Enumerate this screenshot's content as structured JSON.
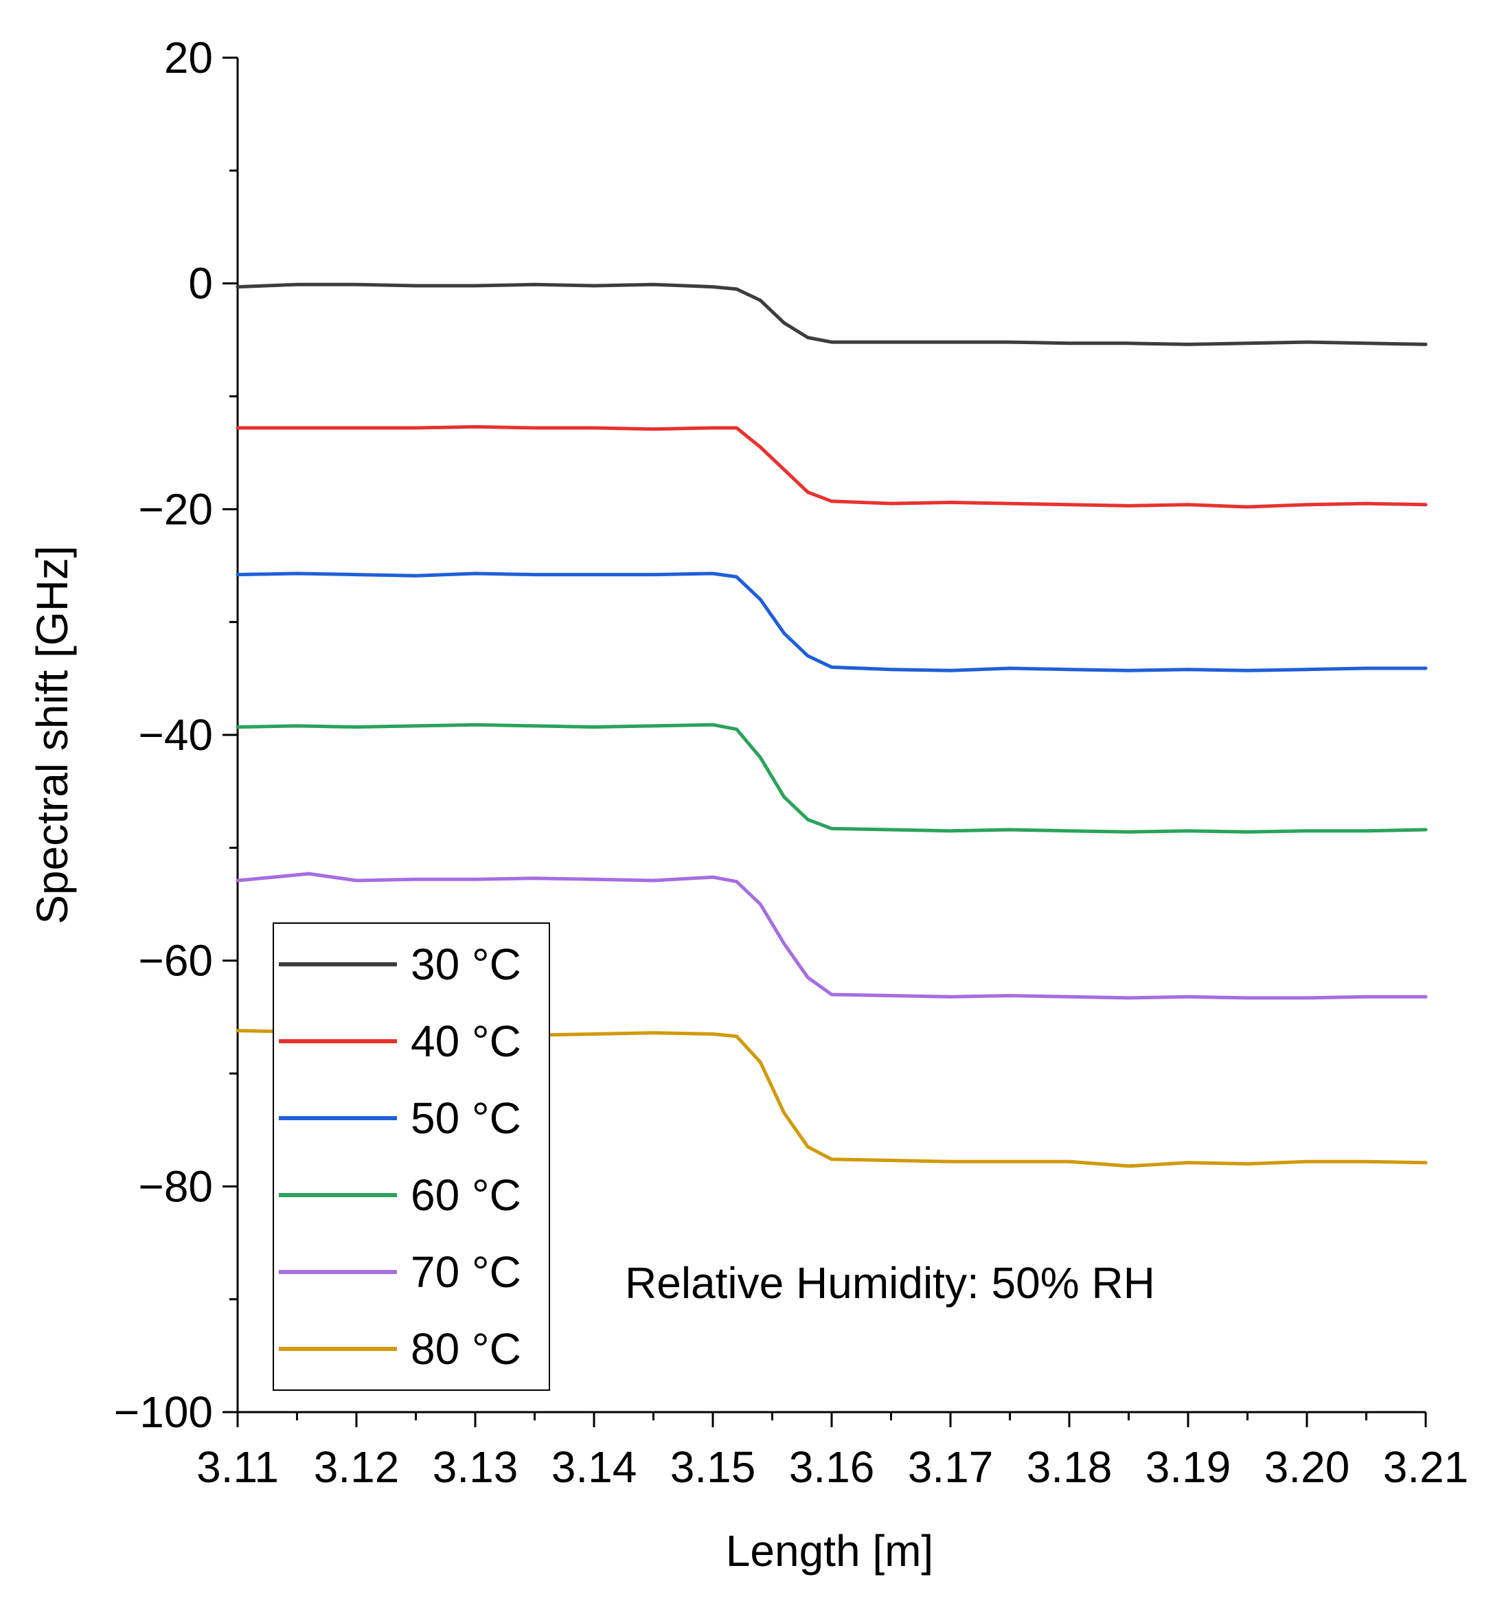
{
  "chart_data": {
    "type": "line",
    "title": "",
    "xlabel": "Length [m]",
    "ylabel": "Spectral shift [GHz]",
    "xlim": [
      3.11,
      3.21
    ],
    "ylim": [
      -100,
      20
    ],
    "xticks": [
      3.11,
      3.12,
      3.13,
      3.14,
      3.15,
      3.16,
      3.17,
      3.18,
      3.19,
      3.2,
      3.21
    ],
    "xtick_labels": [
      "3.11",
      "3.12",
      "3.13",
      "3.14",
      "3.15",
      "3.16",
      "3.17",
      "3.18",
      "3.19",
      "3.20",
      "3.21"
    ],
    "yticks": [
      20,
      0,
      -20,
      -40,
      -60,
      -80,
      -100
    ],
    "ytick_labels": [
      "20",
      "0",
      "−20",
      "−40",
      "−60",
      "−80",
      "−100"
    ],
    "grid": false,
    "legend_position": "bottom-left",
    "annotation": "Relative Humidity: 50% RH",
    "series": [
      {
        "name": "30 °C",
        "color": "#3d3d3d",
        "x": [
          3.11,
          3.115,
          3.12,
          3.125,
          3.13,
          3.135,
          3.14,
          3.145,
          3.15,
          3.152,
          3.154,
          3.156,
          3.158,
          3.16,
          3.165,
          3.17,
          3.175,
          3.18,
          3.185,
          3.19,
          3.195,
          3.2,
          3.205,
          3.21
        ],
        "y": [
          -0.3,
          -0.1,
          -0.1,
          -0.2,
          -0.2,
          -0.1,
          -0.2,
          -0.1,
          -0.3,
          -0.5,
          -1.5,
          -3.5,
          -4.8,
          -5.2,
          -5.2,
          -5.2,
          -5.2,
          -5.3,
          -5.3,
          -5.4,
          -5.3,
          -5.2,
          -5.3,
          -5.4
        ]
      },
      {
        "name": "40 °C",
        "color": "#e8322f",
        "x": [
          3.11,
          3.115,
          3.12,
          3.125,
          3.13,
          3.135,
          3.14,
          3.145,
          3.15,
          3.152,
          3.154,
          3.156,
          3.158,
          3.16,
          3.165,
          3.17,
          3.175,
          3.18,
          3.185,
          3.19,
          3.195,
          3.2,
          3.205,
          3.21
        ],
        "y": [
          -12.8,
          -12.8,
          -12.8,
          -12.8,
          -12.7,
          -12.8,
          -12.8,
          -12.9,
          -12.8,
          -12.8,
          -14.5,
          -16.5,
          -18.5,
          -19.3,
          -19.5,
          -19.4,
          -19.5,
          -19.6,
          -19.7,
          -19.6,
          -19.8,
          -19.6,
          -19.5,
          -19.6
        ]
      },
      {
        "name": "50 °C",
        "color": "#1f5fd8",
        "x": [
          3.11,
          3.115,
          3.12,
          3.125,
          3.13,
          3.135,
          3.14,
          3.145,
          3.15,
          3.152,
          3.154,
          3.156,
          3.158,
          3.16,
          3.165,
          3.17,
          3.175,
          3.18,
          3.185,
          3.19,
          3.195,
          3.2,
          3.205,
          3.21
        ],
        "y": [
          -25.8,
          -25.7,
          -25.8,
          -25.9,
          -25.7,
          -25.8,
          -25.8,
          -25.8,
          -25.7,
          -26.0,
          -28.0,
          -31.0,
          -33.0,
          -34.0,
          -34.2,
          -34.3,
          -34.1,
          -34.2,
          -34.3,
          -34.2,
          -34.3,
          -34.2,
          -34.1,
          -34.1
        ]
      },
      {
        "name": "60 °C",
        "color": "#2aa35a",
        "x": [
          3.11,
          3.115,
          3.12,
          3.125,
          3.13,
          3.135,
          3.14,
          3.145,
          3.15,
          3.152,
          3.154,
          3.156,
          3.158,
          3.16,
          3.165,
          3.17,
          3.175,
          3.18,
          3.185,
          3.19,
          3.195,
          3.2,
          3.205,
          3.21
        ],
        "y": [
          -39.3,
          -39.2,
          -39.3,
          -39.2,
          -39.1,
          -39.2,
          -39.3,
          -39.2,
          -39.1,
          -39.5,
          -42.0,
          -45.5,
          -47.5,
          -48.3,
          -48.4,
          -48.5,
          -48.4,
          -48.5,
          -48.6,
          -48.5,
          -48.6,
          -48.5,
          -48.5,
          -48.4
        ]
      },
      {
        "name": "70 °C",
        "color": "#a66de2",
        "x": [
          3.11,
          3.113,
          3.116,
          3.12,
          3.125,
          3.13,
          3.135,
          3.14,
          3.145,
          3.15,
          3.152,
          3.154,
          3.156,
          3.158,
          3.16,
          3.165,
          3.17,
          3.175,
          3.18,
          3.185,
          3.19,
          3.195,
          3.2,
          3.205,
          3.21
        ],
        "y": [
          -52.9,
          -52.6,
          -52.3,
          -52.9,
          -52.8,
          -52.8,
          -52.7,
          -52.8,
          -52.9,
          -52.6,
          -53.0,
          -55.0,
          -58.5,
          -61.5,
          -63.0,
          -63.1,
          -63.2,
          -63.1,
          -63.2,
          -63.3,
          -63.2,
          -63.3,
          -63.3,
          -63.2,
          -63.2
        ]
      },
      {
        "name": "80 °C",
        "color": "#d19a0a",
        "x": [
          3.11,
          3.115,
          3.12,
          3.125,
          3.13,
          3.135,
          3.14,
          3.145,
          3.15,
          3.152,
          3.154,
          3.156,
          3.158,
          3.16,
          3.165,
          3.17,
          3.175,
          3.18,
          3.185,
          3.19,
          3.195,
          3.2,
          3.205,
          3.21
        ],
        "y": [
          -66.2,
          -66.3,
          -66.4,
          -66.5,
          -66.5,
          -66.6,
          -66.5,
          -66.4,
          -66.5,
          -66.7,
          -69.0,
          -73.5,
          -76.5,
          -77.6,
          -77.7,
          -77.8,
          -77.8,
          -77.8,
          -78.2,
          -77.9,
          -78.0,
          -77.8,
          -77.8,
          -77.9
        ]
      }
    ]
  }
}
